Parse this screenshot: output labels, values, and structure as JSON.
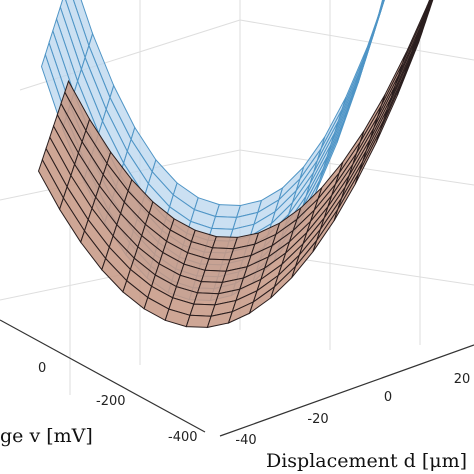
{
  "chart_data": {
    "type": "surface",
    "view": "3d",
    "x_axis": {
      "label": "Displacement d [μm]",
      "ticks": [
        -40,
        -20,
        0,
        20
      ]
    },
    "y_axis": {
      "label": "Voltage v [mV]",
      "label_visible": "ge v [mV]",
      "ticks": [
        -400,
        -200,
        0
      ]
    },
    "grid": true,
    "series": [
      {
        "style": "transparent blue mesh",
        "color": "#4f95c6",
        "fill": "#b9d6ee"
      },
      {
        "style": "opaque copper mesh",
        "color": "#2a1e1e",
        "fill": "#c79a86"
      }
    ],
    "surface_shape": "valley (minimum around d ≈ 0) rising toward both displacement extremes"
  }
}
